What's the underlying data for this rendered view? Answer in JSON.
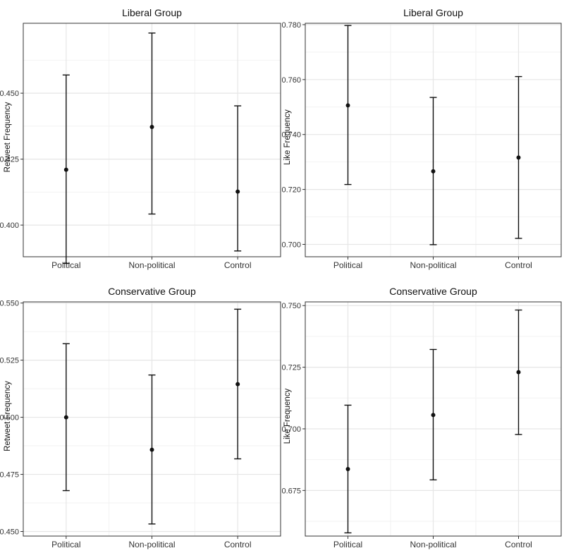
{
  "chart_data": [
    {
      "type": "errorbar",
      "title": "Liberal Group",
      "ylabel": "Retweet Frequency",
      "xlabel": "",
      "categories": [
        "Political",
        "Non-political",
        "Control"
      ],
      "ylim": [
        0.388,
        0.4765
      ],
      "yticks": [
        "0.400",
        "0.425",
        "0.450"
      ],
      "points": [
        {
          "mean": 0.421,
          "lower": 0.3855,
          "upper": 0.4569
        },
        {
          "mean": 0.4372,
          "lower": 0.4042,
          "upper": 0.4728
        },
        {
          "mean": 0.4127,
          "lower": 0.3902,
          "upper": 0.4452
        }
      ],
      "grid": true
    },
    {
      "type": "errorbar",
      "title": "Liberal Group",
      "ylabel": "Like Frequency",
      "xlabel": "",
      "categories": [
        "Political",
        "Non-political",
        "Control"
      ],
      "ylim": [
        0.6955,
        0.7805
      ],
      "yticks": [
        "0.700",
        "0.720",
        "0.740",
        "0.760",
        "0.780"
      ],
      "points": [
        {
          "mean": 0.7506,
          "lower": 0.7218,
          "upper": 0.7797
        },
        {
          "mean": 0.7266,
          "lower": 0.6999,
          "upper": 0.7535
        },
        {
          "mean": 0.7316,
          "lower": 0.7022,
          "upper": 0.7611
        }
      ],
      "grid": true
    },
    {
      "type": "errorbar",
      "title": "Conservative Group",
      "ylabel": "Retweet Frequency",
      "xlabel": "",
      "categories": [
        "Political",
        "Non-political",
        "Control"
      ],
      "ylim": [
        0.448,
        0.5505
      ],
      "yticks": [
        "0.450",
        "0.475",
        "0.500",
        "0.525",
        "0.550"
      ],
      "points": [
        {
          "mean": 0.5,
          "lower": 0.4679,
          "upper": 0.5322
        },
        {
          "mean": 0.4858,
          "lower": 0.4533,
          "upper": 0.5185
        },
        {
          "mean": 0.5145,
          "lower": 0.4818,
          "upper": 0.5473
        }
      ],
      "grid": true
    },
    {
      "type": "errorbar",
      "title": "Conservative Group",
      "ylabel": "Like Frequency",
      "xlabel": "",
      "categories": [
        "Political",
        "Non-political",
        "Control"
      ],
      "ylim": [
        0.6565,
        0.7515
      ],
      "yticks": [
        "0.675",
        "0.700",
        "0.725",
        "0.750"
      ],
      "points": [
        {
          "mean": 0.6837,
          "lower": 0.6578,
          "upper": 0.7096
        },
        {
          "mean": 0.7056,
          "lower": 0.6793,
          "upper": 0.7322
        },
        {
          "mean": 0.723,
          "lower": 0.6977,
          "upper": 0.7482
        }
      ],
      "grid": true
    }
  ],
  "colors": {
    "panel_border": "#333333",
    "grid_major": "#e6e6e6",
    "grid_minor": "#f2f2f2",
    "marks": "#111111"
  }
}
